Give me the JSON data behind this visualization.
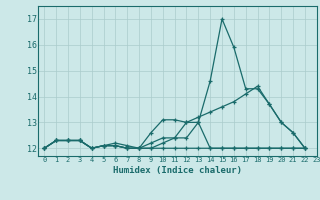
{
  "title": "",
  "xlabel": "Humidex (Indice chaleur)",
  "background_color": "#cce8e8",
  "grid_color": "#aacccc",
  "line_color": "#1a6b6b",
  "xlim": [
    -0.5,
    23
  ],
  "ylim": [
    11.7,
    17.5
  ],
  "yticks": [
    12,
    13,
    14,
    15,
    16,
    17
  ],
  "xticks": [
    0,
    1,
    2,
    3,
    4,
    5,
    6,
    7,
    8,
    9,
    10,
    11,
    12,
    13,
    14,
    15,
    16,
    17,
    18,
    19,
    20,
    21,
    22,
    23
  ],
  "series": [
    [
      12.0,
      12.3,
      12.3,
      12.3,
      12.0,
      12.1,
      12.1,
      12.0,
      12.0,
      12.0,
      12.2,
      12.4,
      12.4,
      13.0,
      14.6,
      17.0,
      15.9,
      14.3,
      14.3,
      13.7,
      13.0,
      12.6,
      12.0,
      null
    ],
    [
      12.0,
      12.3,
      12.3,
      12.3,
      12.0,
      12.1,
      12.1,
      12.0,
      12.0,
      12.6,
      13.1,
      13.1,
      13.0,
      13.0,
      12.0,
      12.0,
      12.0,
      12.0,
      12.0,
      12.0,
      12.0,
      12.0,
      12.0,
      null
    ],
    [
      12.0,
      12.3,
      12.3,
      12.3,
      12.0,
      12.1,
      12.2,
      12.1,
      12.0,
      12.0,
      12.0,
      12.0,
      12.0,
      12.0,
      12.0,
      12.0,
      12.0,
      12.0,
      12.0,
      12.0,
      12.0,
      12.0,
      12.0,
      null
    ],
    [
      12.0,
      12.3,
      12.3,
      12.3,
      12.0,
      12.1,
      12.1,
      12.0,
      12.0,
      12.2,
      12.4,
      12.4,
      13.0,
      13.2,
      13.4,
      13.6,
      13.8,
      14.1,
      14.4,
      13.7,
      13.0,
      12.6,
      12.0,
      null
    ]
  ]
}
